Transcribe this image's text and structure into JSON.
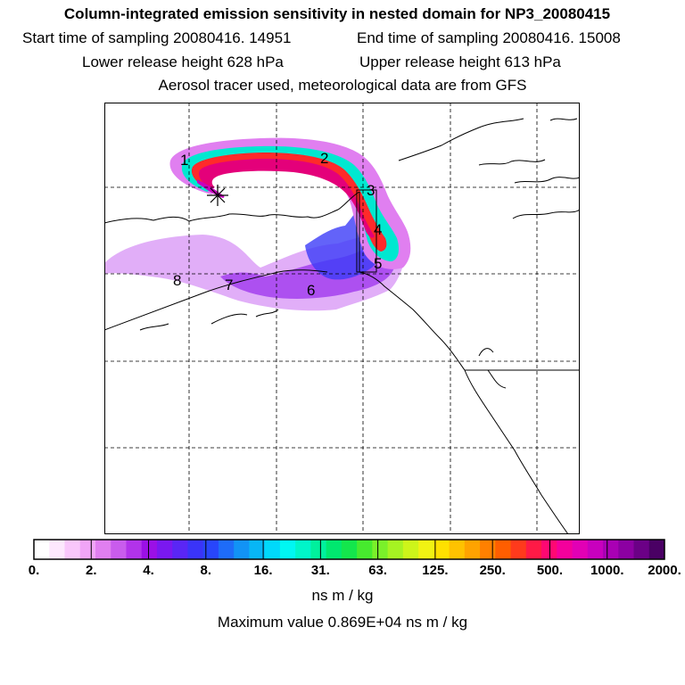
{
  "header": {
    "title": "Column-integrated emission sensitivity in nested domain for NP3_20080415",
    "start": "Start time of sampling 20080416. 14951",
    "end": "End time of sampling 20080416. 15008",
    "lower": "Lower release height  628 hPa",
    "upper": "Upper release height  613 hPa",
    "tracer": "Aerosol tracer used, meteorological data are from GFS"
  },
  "map": {
    "point_labels": [
      "1",
      "2",
      "3",
      "4",
      "5",
      "6",
      "7",
      "8"
    ],
    "release_marker": "star-icon"
  },
  "colorbar": {
    "ticks": [
      "0.",
      "2.",
      "4.",
      "8.",
      "16.",
      "31.",
      "63.",
      "125.",
      "250.",
      "500.",
      "1000.",
      "2000."
    ],
    "colors": [
      "#ffffff",
      "#fde8fd",
      "#f9c7fb",
      "#f1a5f7",
      "#e07ff0",
      "#c95ced",
      "#b233ea",
      "#9b10e6",
      "#7a18f0",
      "#5a26f5",
      "#3a34f8",
      "#2846fb",
      "#1e6cf9",
      "#1293f6",
      "#08b6f6",
      "#00d9fb",
      "#00f7f2",
      "#00f5c9",
      "#00f09d",
      "#00e86f",
      "#14e64c",
      "#47ea2e",
      "#7af02a",
      "#a6f322",
      "#cdf51a",
      "#f1f213",
      "#ffe000",
      "#ffc200",
      "#ffa300",
      "#ff8000",
      "#ff5e00",
      "#ff3a1c",
      "#ff1a46",
      "#ff0872",
      "#f4009c",
      "#e200b5",
      "#c800be",
      "#a900b4",
      "#8c00a2",
      "#6b0086",
      "#4a0064"
    ],
    "units": "ns m / kg",
    "max_value": "Maximum value  0.869E+04 ns m / kg"
  }
}
